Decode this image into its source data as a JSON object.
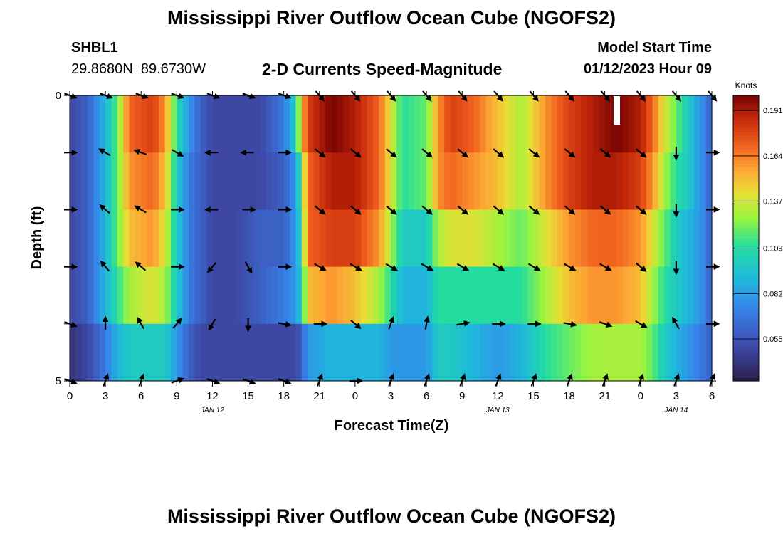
{
  "title": "Mississippi River Outflow Ocean Cube (NGOFS2)",
  "station": {
    "id": "SHBL1",
    "coords": "29.8680N  89.6730W"
  },
  "subtitle": "2-D Currents Speed-Magnitude",
  "model_start": {
    "label": "Model Start Time",
    "value": "01/12/2023 Hour 09"
  },
  "second_panel_title": "Mississippi River Outflow Ocean Cube (NGOFS2)",
  "chart_data": {
    "type": "heatmap",
    "title": "2-D Currents Speed-Magnitude",
    "xlabel": "Forecast Time(Z)",
    "ylabel": "Depth (ft)",
    "x_tick_labels": [
      "0",
      "3",
      "6",
      "9",
      "12",
      "15",
      "18",
      "21",
      "0",
      "3",
      "6",
      "9",
      "12",
      "15",
      "18",
      "21",
      "0",
      "3",
      "6"
    ],
    "x_hours": [
      0,
      3,
      6,
      9,
      12,
      15,
      18,
      21,
      24,
      27,
      30,
      33,
      36,
      39,
      42,
      45,
      48,
      51,
      54
    ],
    "x_range_hours": [
      0,
      54
    ],
    "date_labels": [
      {
        "text": "JAN 12",
        "hour": 12
      },
      {
        "text": "JAN 13",
        "hour": 36
      },
      {
        "text": "JAN 14",
        "hour": 51
      }
    ],
    "y_tick_labels": [
      "0",
      "5"
    ],
    "ylim": [
      0,
      5
    ],
    "y_inverted": true,
    "colorbar": {
      "unit": "Knots",
      "tick_labels": [
        "0.191",
        "0.164",
        "0.137",
        "0.109",
        "0.082",
        "0.055"
      ],
      "ticks": [
        0.191,
        0.164,
        0.137,
        0.109,
        0.082,
        0.055
      ],
      "range": [
        0.03,
        0.2
      ]
    },
    "grid": false,
    "depth_layers": 5,
    "speed_keyframes": {
      "hours": [
        0,
        1.5,
        3,
        4,
        5,
        7,
        8,
        9,
        10,
        11,
        12,
        14,
        16,
        18,
        19,
        19.5,
        20,
        22,
        24,
        26,
        27,
        28,
        30,
        31,
        32,
        34,
        36,
        38,
        40,
        42,
        44,
        46,
        48,
        49,
        50,
        51,
        52,
        53,
        54
      ],
      "layers": [
        [
          0.05,
          0.06,
          0.09,
          0.12,
          0.17,
          0.18,
          0.16,
          0.11,
          0.08,
          0.06,
          0.05,
          0.05,
          0.05,
          0.07,
          0.1,
          0.15,
          0.18,
          0.2,
          0.19,
          0.17,
          0.14,
          0.11,
          0.12,
          0.16,
          0.18,
          0.17,
          0.15,
          0.13,
          0.16,
          0.18,
          0.19,
          0.2,
          0.19,
          0.17,
          0.14,
          0.12,
          0.1,
          0.08,
          0.06
        ],
        [
          0.05,
          0.06,
          0.09,
          0.12,
          0.16,
          0.17,
          0.15,
          0.1,
          0.07,
          0.06,
          0.05,
          0.05,
          0.05,
          0.06,
          0.08,
          0.12,
          0.17,
          0.19,
          0.19,
          0.17,
          0.14,
          0.11,
          0.12,
          0.16,
          0.17,
          0.16,
          0.15,
          0.13,
          0.16,
          0.18,
          0.19,
          0.19,
          0.18,
          0.16,
          0.13,
          0.11,
          0.1,
          0.08,
          0.06
        ],
        [
          0.05,
          0.06,
          0.09,
          0.12,
          0.15,
          0.16,
          0.14,
          0.1,
          0.07,
          0.06,
          0.05,
          0.05,
          0.06,
          0.06,
          0.08,
          0.11,
          0.17,
          0.18,
          0.18,
          0.16,
          0.13,
          0.1,
          0.1,
          0.13,
          0.14,
          0.14,
          0.13,
          0.12,
          0.14,
          0.16,
          0.17,
          0.17,
          0.16,
          0.14,
          0.12,
          0.1,
          0.09,
          0.08,
          0.06
        ],
        [
          0.05,
          0.06,
          0.09,
          0.11,
          0.13,
          0.14,
          0.13,
          0.1,
          0.07,
          0.06,
          0.05,
          0.05,
          0.06,
          0.07,
          0.08,
          0.1,
          0.15,
          0.16,
          0.15,
          0.13,
          0.11,
          0.09,
          0.09,
          0.11,
          0.11,
          0.11,
          0.11,
          0.11,
          0.13,
          0.15,
          0.16,
          0.16,
          0.15,
          0.13,
          0.11,
          0.1,
          0.09,
          0.08,
          0.06
        ],
        [
          0.04,
          0.05,
          0.07,
          0.09,
          0.1,
          0.1,
          0.1,
          0.08,
          0.06,
          0.05,
          0.05,
          0.05,
          0.05,
          0.05,
          0.05,
          0.06,
          0.08,
          0.09,
          0.09,
          0.09,
          0.08,
          0.08,
          0.08,
          0.1,
          0.1,
          0.09,
          0.08,
          0.09,
          0.11,
          0.12,
          0.13,
          0.13,
          0.13,
          0.12,
          0.1,
          0.09,
          0.08,
          0.07,
          0.06
        ]
      ]
    },
    "vector_hours": [
      0,
      3,
      6,
      9,
      12,
      15,
      18,
      21,
      24,
      27,
      30,
      33,
      36,
      39,
      42,
      45,
      48,
      51,
      54
    ],
    "vector_depths_ft": [
      0,
      1,
      2,
      3,
      4,
      5
    ],
    "vector_direction_deg": [
      [
        110,
        110,
        110,
        110,
        110,
        110,
        110,
        140,
        140,
        140,
        140,
        140,
        140,
        140,
        140,
        140,
        140,
        140,
        140
      ],
      [
        90,
        300,
        290,
        120,
        270,
        270,
        90,
        130,
        130,
        130,
        130,
        130,
        130,
        130,
        130,
        130,
        130,
        180,
        90
      ],
      [
        90,
        310,
        300,
        90,
        270,
        90,
        90,
        130,
        130,
        130,
        130,
        130,
        130,
        130,
        130,
        130,
        130,
        180,
        90
      ],
      [
        90,
        320,
        310,
        90,
        220,
        150,
        90,
        120,
        120,
        120,
        120,
        120,
        120,
        120,
        120,
        120,
        130,
        180,
        90
      ],
      [
        110,
        0,
        330,
        40,
        210,
        180,
        100,
        90,
        130,
        20,
        10,
        80,
        90,
        90,
        100,
        110,
        120,
        330,
        90
      ],
      [
        110,
        20,
        20,
        70,
        110,
        110,
        110,
        20,
        90,
        20,
        20,
        20,
        20,
        20,
        20,
        20,
        20,
        20,
        20
      ]
    ]
  }
}
